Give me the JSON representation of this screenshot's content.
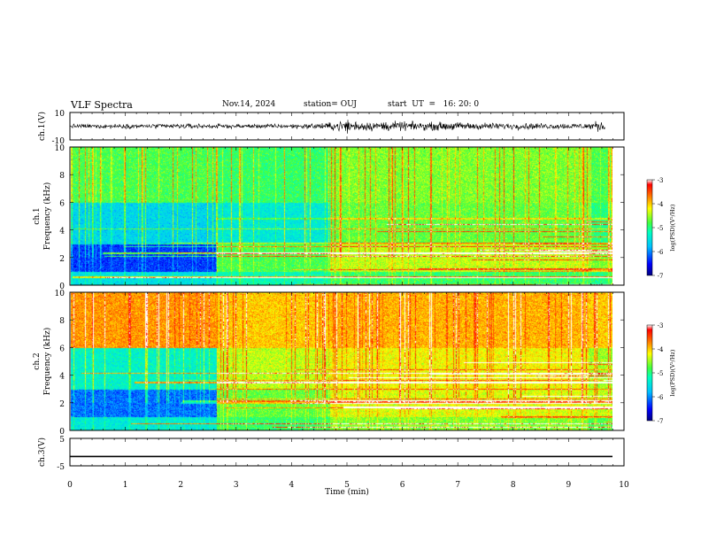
{
  "header": {
    "title": "VLF Spectra",
    "date": "Nov.14, 2024",
    "station": "station= OUJ",
    "start": "start  UT  =   16: 20: 0"
  },
  "chart_data": [
    {
      "id": "ch1-waveform",
      "type": "line",
      "ylabel": "ch.1(V)",
      "ylim": [
        -10,
        10
      ],
      "ytick_labels": [
        "10",
        "-10"
      ],
      "x_range_min": [
        0,
        9.85
      ],
      "baseline": 0,
      "amplitude_envelope": [
        {
          "t": 0.0,
          "amp": 1.5
        },
        {
          "t": 0.6,
          "amp": 1.8
        },
        {
          "t": 1.2,
          "amp": 1.6
        },
        {
          "t": 2.0,
          "amp": 2.0
        },
        {
          "t": 2.7,
          "amp": 1.7
        },
        {
          "t": 3.5,
          "amp": 1.6
        },
        {
          "t": 4.3,
          "amp": 2.0
        },
        {
          "t": 4.7,
          "amp": 2.6
        },
        {
          "t": 5.0,
          "amp": 5.5
        },
        {
          "t": 5.3,
          "amp": 3.5
        },
        {
          "t": 5.8,
          "amp": 3.8
        },
        {
          "t": 6.3,
          "amp": 3.0
        },
        {
          "t": 6.8,
          "amp": 3.2
        },
        {
          "t": 7.5,
          "amp": 2.6
        },
        {
          "t": 8.1,
          "amp": 2.4
        },
        {
          "t": 8.7,
          "amp": 2.2
        },
        {
          "t": 9.3,
          "amp": 2.3
        },
        {
          "t": 9.6,
          "amp": 4.5
        },
        {
          "t": 9.85,
          "amp": 2.5
        }
      ]
    },
    {
      "id": "ch1-spectrogram",
      "type": "heatmap",
      "ylabel": "ch.1\nFrequency (kHz)",
      "ylim": [
        0,
        10
      ],
      "yticks": [
        0,
        2,
        4,
        6,
        8,
        10
      ],
      "x_range_min": [
        0,
        9.85
      ],
      "colorbar": {
        "label": "log(PSD)(V²/Hz)",
        "range": [
          -7,
          -3
        ],
        "ticks": [
          -3,
          -4,
          -5,
          -6,
          -7
        ]
      },
      "approx_level_by_band": [
        {
          "t_from": 0,
          "t_to": 2.65,
          "f_0_1": -5.5,
          "f_1_3": -6.3,
          "f_3_6": -5.6,
          "f_6_10": -4.8
        },
        {
          "t_from": 2.65,
          "t_to": 4.7,
          "f_0_1": -5.2,
          "f_1_3": -4.8,
          "f_3_6": -5.4,
          "f_6_10": -4.9
        },
        {
          "t_from": 4.7,
          "t_to": 9.4,
          "f_0_1": -4.9,
          "f_1_3": -4.4,
          "f_3_6": -4.7,
          "f_6_10": -4.6
        },
        {
          "t_from": 9.4,
          "t_to": 9.85,
          "f_0_1": -5.0,
          "f_1_3": -4.6,
          "f_3_6": -5.0,
          "f_6_10": -4.8
        }
      ]
    },
    {
      "id": "ch2-spectrogram",
      "type": "heatmap",
      "ylabel": "ch.2\nFrequency (kHz)",
      "ylim": [
        0,
        10
      ],
      "yticks": [
        0,
        2,
        4,
        6,
        8,
        10
      ],
      "x_range_min": [
        0,
        9.85
      ],
      "colorbar": {
        "label": "log(PSD)(V²/Hz)",
        "range": [
          -7,
          -3
        ],
        "ticks": [
          -3,
          -4,
          -5,
          -6,
          -7
        ]
      },
      "approx_level_by_band": [
        {
          "t_from": 0,
          "t_to": 2.65,
          "f_0_1": -5.4,
          "f_1_3": -6.1,
          "f_3_6": -5.3,
          "f_6_10": -3.8
        },
        {
          "t_from": 2.65,
          "t_to": 4.7,
          "f_0_1": -4.9,
          "f_1_3": -4.7,
          "f_3_6": -4.4,
          "f_6_10": -4.0
        },
        {
          "t_from": 4.7,
          "t_to": 9.4,
          "f_0_1": -4.6,
          "f_1_3": -4.3,
          "f_3_6": -4.2,
          "f_6_10": -3.9
        },
        {
          "t_from": 9.4,
          "t_to": 9.85,
          "f_0_1": -4.8,
          "f_1_3": -4.4,
          "f_3_6": -4.5,
          "f_6_10": -4.0
        }
      ]
    },
    {
      "id": "ch3-waveform",
      "type": "line",
      "ylabel": "ch.3(V)",
      "ylim": [
        -5,
        5
      ],
      "ytick_labels": [
        "5",
        "-5"
      ],
      "x_range_min": [
        0,
        9.85
      ],
      "constant_value": -1.6
    }
  ],
  "x_axis": {
    "label": "Time  (min)",
    "range": [
      0,
      10
    ],
    "tick_labels": [
      "0",
      "1",
      "2",
      "3",
      "4",
      "5",
      "6",
      "7",
      "8",
      "9",
      "10"
    ]
  }
}
